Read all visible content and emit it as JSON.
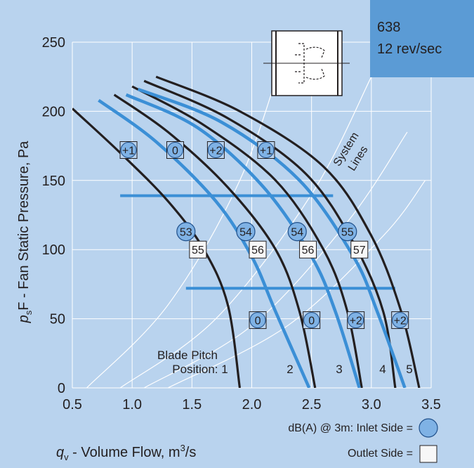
{
  "chart_data": {
    "type": "line",
    "title_box": {
      "line1": "638",
      "line2": "12 rev/sec",
      "color": "#5b9bd5"
    },
    "ylabel_prefix": "p",
    "ylabel_sub": "s",
    "ylabel_rest": "F - Fan Static Pressure, Pa",
    "xlabel_prefix": "q",
    "xlabel_sub": "v",
    "xlabel_rest": " - Volume Flow, m",
    "xlabel_sup": "3",
    "xlabel_unit_tail": "/s",
    "xlim": [
      0.5,
      3.5
    ],
    "ylim": [
      0,
      250
    ],
    "xticks": [
      "0.5",
      "1.0",
      "1.5",
      "2.0",
      "2.5",
      "3.0",
      "3.5"
    ],
    "yticks": [
      "0",
      "50",
      "100",
      "150",
      "200",
      "250"
    ],
    "grid": true,
    "colors": {
      "background": "#b9d3ee",
      "black_curve": "#231f20",
      "blue_curve": "#3b8fd6",
      "system_line": "#ffffff"
    },
    "black_curves": [
      {
        "points": [
          [
            0.5,
            202
          ],
          [
            0.9,
            170
          ],
          [
            1.3,
            135
          ],
          [
            1.6,
            100
          ],
          [
            1.8,
            60
          ],
          [
            1.9,
            0
          ]
        ]
      },
      {
        "points": [
          [
            0.85,
            212
          ],
          [
            1.3,
            185
          ],
          [
            1.8,
            145
          ],
          [
            2.2,
            100
          ],
          [
            2.4,
            55
          ],
          [
            2.53,
            0
          ]
        ]
      },
      {
        "points": [
          [
            1.0,
            218
          ],
          [
            1.6,
            190
          ],
          [
            2.2,
            150
          ],
          [
            2.6,
            100
          ],
          [
            2.8,
            55
          ],
          [
            2.92,
            0
          ]
        ]
      },
      {
        "points": [
          [
            1.1,
            222
          ],
          [
            1.8,
            195
          ],
          [
            2.45,
            155
          ],
          [
            2.85,
            105
          ],
          [
            3.1,
            55
          ],
          [
            3.2,
            0
          ]
        ]
      },
      {
        "points": [
          [
            1.2,
            225
          ],
          [
            1.9,
            200
          ],
          [
            2.6,
            160
          ],
          [
            3.0,
            110
          ],
          [
            3.25,
            55
          ],
          [
            3.4,
            0
          ]
        ]
      }
    ],
    "blue_curves": [
      {
        "points": [
          [
            0.72,
            208
          ],
          [
            1.2,
            178
          ],
          [
            1.7,
            135
          ],
          [
            2.0,
            95
          ],
          [
            2.2,
            55
          ],
          [
            2.48,
            0
          ]
        ]
      },
      {
        "points": [
          [
            0.95,
            212
          ],
          [
            1.55,
            188
          ],
          [
            2.1,
            145
          ],
          [
            2.5,
            95
          ],
          [
            2.7,
            55
          ],
          [
            2.9,
            0
          ]
        ]
      },
      {
        "points": [
          [
            1.05,
            216
          ],
          [
            1.75,
            192
          ],
          [
            2.4,
            150
          ],
          [
            2.85,
            95
          ],
          [
            3.05,
            55
          ],
          [
            3.28,
            0
          ]
        ]
      }
    ],
    "blue_hlines": [
      {
        "y": 139,
        "x0": 0.9,
        "x1": 2.68
      },
      {
        "y": 72,
        "x0": 1.45,
        "x1": 3.2
      }
    ],
    "system_lines": [
      {
        "points": [
          [
            0.62,
            0
          ],
          [
            1.3,
            60
          ],
          [
            1.9,
            150
          ],
          [
            2.3,
            250
          ]
        ]
      },
      {
        "points": [
          [
            0.9,
            0
          ],
          [
            1.7,
            50
          ],
          [
            2.5,
            140
          ],
          [
            3.0,
            225
          ]
        ]
      },
      {
        "points": [
          [
            1.1,
            0
          ],
          [
            2.0,
            45
          ],
          [
            2.8,
            120
          ],
          [
            3.3,
            185
          ]
        ]
      },
      {
        "points": [
          [
            1.3,
            0
          ],
          [
            2.3,
            45
          ],
          [
            3.1,
            110
          ],
          [
            3.45,
            150
          ]
        ]
      }
    ],
    "inlet_markers": [
      {
        "x": 1.45,
        "y": 113,
        "label": "53"
      },
      {
        "x": 1.95,
        "y": 113,
        "label": "54"
      },
      {
        "x": 2.38,
        "y": 113,
        "label": "54"
      },
      {
        "x": 2.8,
        "y": 113,
        "label": "55"
      }
    ],
    "outlet_markers": [
      {
        "x": 1.55,
        "y": 100,
        "label": "55"
      },
      {
        "x": 2.05,
        "y": 100,
        "label": "56"
      },
      {
        "x": 2.47,
        "y": 100,
        "label": "56"
      },
      {
        "x": 2.9,
        "y": 100,
        "label": "57"
      }
    ],
    "pitch_markers_upper": [
      {
        "x": 0.97,
        "y": 172,
        "label": "+1"
      },
      {
        "x": 1.36,
        "y": 172,
        "label": "0"
      },
      {
        "x": 1.7,
        "y": 172,
        "label": "+2"
      },
      {
        "x": 2.12,
        "y": 172,
        "label": "+1"
      }
    ],
    "pitch_markers_lower": [
      {
        "x": 2.05,
        "y": 49,
        "label": "0"
      },
      {
        "x": 2.5,
        "y": 49,
        "label": "0"
      },
      {
        "x": 2.87,
        "y": 49,
        "label": "+2"
      },
      {
        "x": 3.24,
        "y": 49,
        "label": "+2"
      }
    ],
    "annotations": {
      "system_lines_text": "System\nLines",
      "blade_pitch_line1": "Blade Pitch",
      "blade_pitch_line2": "Position: 1",
      "pos2": "2",
      "pos3": "3",
      "pos4": "4",
      "pos5": "5"
    },
    "legend": {
      "header": "dB(A) @ 3m:",
      "inlet": "Inlet Side =",
      "outlet": "Outlet Side ="
    }
  }
}
